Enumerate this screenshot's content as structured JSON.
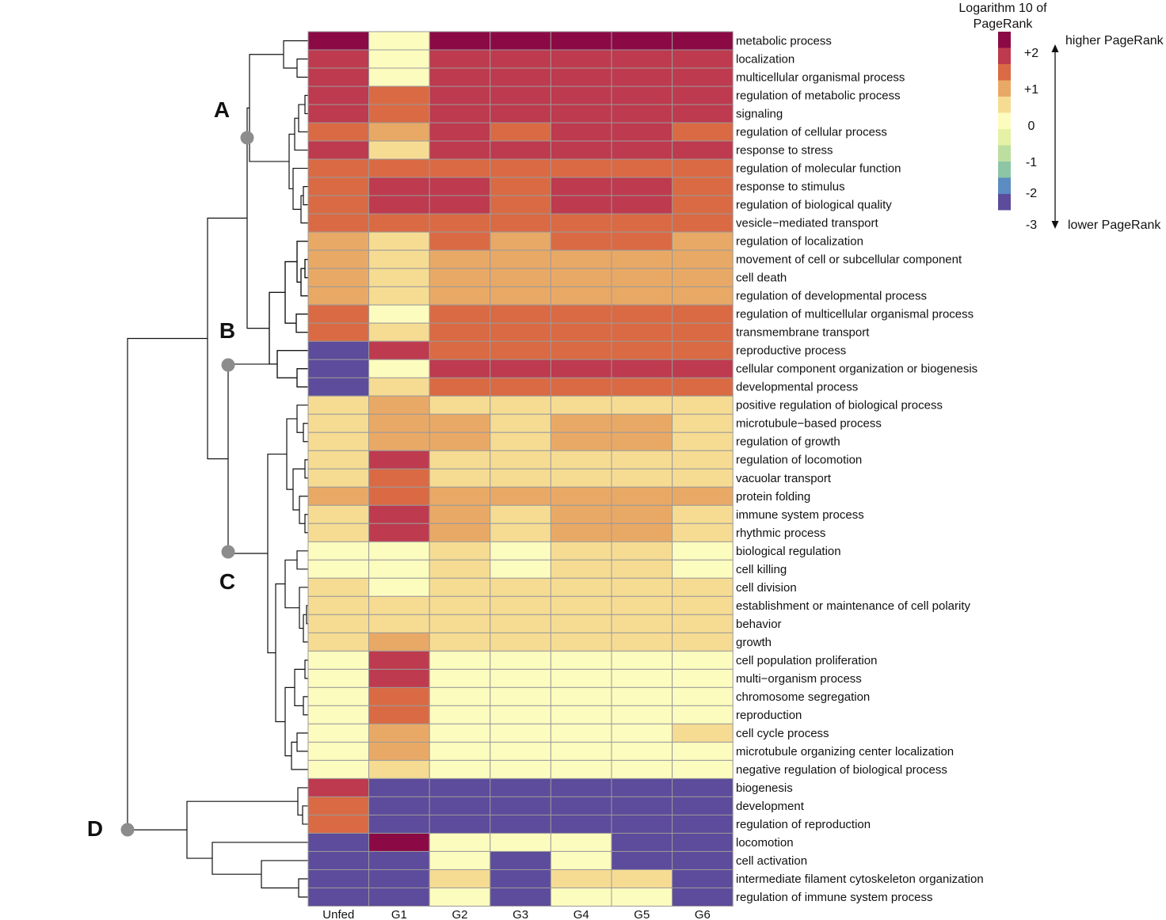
{
  "chart_data": {
    "type": "heatmap",
    "columns": [
      "Unfed",
      "G1",
      "G2",
      "G3",
      "G4",
      "G5",
      "G6"
    ],
    "rows": [
      {
        "label": "metabolic process",
        "values": [
          2.7,
          0.2,
          2.7,
          2.7,
          2.7,
          2.7,
          2.7
        ]
      },
      {
        "label": "localization",
        "values": [
          2,
          0.2,
          2,
          2,
          2,
          2,
          2
        ]
      },
      {
        "label": "multicellular organismal process",
        "values": [
          2,
          0.2,
          2,
          2,
          2,
          2,
          2
        ]
      },
      {
        "label": "regulation of metabolic process",
        "values": [
          2,
          1.5,
          2,
          2,
          2,
          2,
          2
        ]
      },
      {
        "label": "signaling",
        "values": [
          2,
          1.5,
          2,
          2,
          2,
          2,
          2
        ]
      },
      {
        "label": "regulation of cellular process",
        "values": [
          1.5,
          1,
          2,
          1.5,
          2,
          2,
          1.5
        ]
      },
      {
        "label": "response to stress",
        "values": [
          2,
          0.6,
          2,
          2,
          2,
          2,
          2
        ]
      },
      {
        "label": "regulation of molecular function",
        "values": [
          1.5,
          1.5,
          1.5,
          1.5,
          1.5,
          1.5,
          1.5
        ]
      },
      {
        "label": "response to stimulus",
        "values": [
          1.5,
          2,
          2,
          1.5,
          2,
          2,
          1.5
        ]
      },
      {
        "label": "regulation of biological quality",
        "values": [
          1.5,
          2,
          2,
          1.5,
          2,
          2,
          1.5
        ]
      },
      {
        "label": "vesicle−mediated transport",
        "values": [
          1.5,
          1.5,
          1.5,
          1.5,
          1.5,
          1.5,
          1.5
        ]
      },
      {
        "label": "regulation of localization",
        "values": [
          1,
          0.6,
          1.5,
          1,
          1.5,
          1.5,
          1
        ]
      },
      {
        "label": "movement of cell or subcellular component",
        "values": [
          1,
          0.6,
          1,
          1,
          1,
          1,
          1
        ]
      },
      {
        "label": "cell death",
        "values": [
          1,
          0.6,
          1,
          1,
          1,
          1,
          1
        ]
      },
      {
        "label": "regulation of developmental process",
        "values": [
          1,
          0.6,
          1,
          1,
          1,
          1,
          1
        ]
      },
      {
        "label": "regulation of multicellular organismal process",
        "values": [
          1.5,
          0.2,
          1.5,
          1.5,
          1.5,
          1.5,
          1.5
        ]
      },
      {
        "label": "transmembrane transport",
        "values": [
          1.5,
          0.6,
          1.5,
          1.5,
          1.5,
          1.5,
          1.5
        ]
      },
      {
        "label": "reproductive process",
        "values": [
          -3,
          2,
          1.5,
          1.5,
          1.5,
          1.5,
          1.5
        ]
      },
      {
        "label": "cellular component organization or biogenesis",
        "values": [
          -3,
          0.2,
          2,
          2,
          2,
          2,
          2
        ]
      },
      {
        "label": "developmental process",
        "values": [
          -3,
          0.6,
          1.5,
          1.5,
          1.5,
          1.5,
          1.5
        ]
      },
      {
        "label": "positive regulation of biological process",
        "values": [
          0.6,
          1,
          0.6,
          0.6,
          0.6,
          0.6,
          0.6
        ]
      },
      {
        "label": "microtubule−based process",
        "values": [
          0.6,
          1,
          1,
          0.6,
          1,
          1,
          0.6
        ]
      },
      {
        "label": "regulation of growth",
        "values": [
          0.6,
          1,
          1,
          0.6,
          1,
          1,
          0.6
        ]
      },
      {
        "label": "regulation of locomotion",
        "values": [
          0.6,
          2,
          0.6,
          0.6,
          0.6,
          0.6,
          0.6
        ]
      },
      {
        "label": "vacuolar transport",
        "values": [
          0.6,
          1.5,
          0.6,
          0.6,
          0.6,
          0.6,
          0.6
        ]
      },
      {
        "label": "protein folding",
        "values": [
          1,
          1.5,
          1,
          1,
          1,
          1,
          1
        ]
      },
      {
        "label": "immune system process",
        "values": [
          0.6,
          2,
          1,
          0.6,
          1,
          1,
          0.6
        ]
      },
      {
        "label": "rhythmic process",
        "values": [
          0.6,
          2,
          1,
          0.6,
          1,
          1,
          0.6
        ]
      },
      {
        "label": "biological regulation",
        "values": [
          0.2,
          0.2,
          0.6,
          0.2,
          0.6,
          0.6,
          0.2
        ]
      },
      {
        "label": "cell killing",
        "values": [
          0.2,
          0.2,
          0.6,
          0.2,
          0.6,
          0.6,
          0.2
        ]
      },
      {
        "label": "cell division",
        "values": [
          0.6,
          0.2,
          0.6,
          0.6,
          0.6,
          0.6,
          0.6
        ]
      },
      {
        "label": "establishment or maintenance of cell polarity",
        "values": [
          0.6,
          0.6,
          0.6,
          0.6,
          0.6,
          0.6,
          0.6
        ]
      },
      {
        "label": "behavior",
        "values": [
          0.6,
          0.6,
          0.6,
          0.6,
          0.6,
          0.6,
          0.6
        ]
      },
      {
        "label": "growth",
        "values": [
          0.6,
          1,
          0.6,
          0.6,
          0.6,
          0.6,
          0.6
        ]
      },
      {
        "label": "cell population proliferation",
        "values": [
          0.2,
          2,
          0.2,
          0.2,
          0.2,
          0.2,
          0.2
        ]
      },
      {
        "label": "multi−organism process",
        "values": [
          0.2,
          2,
          0.2,
          0.2,
          0.2,
          0.2,
          0.2
        ]
      },
      {
        "label": "chromosome segregation",
        "values": [
          0.2,
          1.5,
          0.2,
          0.2,
          0.2,
          0.2,
          0.2
        ]
      },
      {
        "label": "reproduction",
        "values": [
          0.2,
          1.5,
          0.2,
          0.2,
          0.2,
          0.2,
          0.2
        ]
      },
      {
        "label": "cell cycle process",
        "values": [
          0.2,
          1,
          0.2,
          0.2,
          0.2,
          0.2,
          0.6
        ]
      },
      {
        "label": "microtubule organizing center localization",
        "values": [
          0.2,
          1,
          0.2,
          0.2,
          0.2,
          0.2,
          0.2
        ]
      },
      {
        "label": "negative regulation of biological process",
        "values": [
          0.2,
          0.6,
          0.2,
          0.2,
          0.2,
          0.2,
          0.2
        ]
      },
      {
        "label": "biogenesis",
        "values": [
          2,
          -3,
          -3,
          -3,
          -3,
          -3,
          -3
        ]
      },
      {
        "label": "development",
        "values": [
          1.5,
          -3,
          -3,
          -3,
          -3,
          -3,
          -3
        ]
      },
      {
        "label": "regulation of reproduction",
        "values": [
          1.5,
          -3,
          -3,
          -3,
          -3,
          -3,
          -3
        ]
      },
      {
        "label": "locomotion",
        "values": [
          -3,
          2.7,
          0.2,
          0.2,
          0.2,
          -3,
          -3
        ]
      },
      {
        "label": "cell activation",
        "values": [
          -3,
          -3,
          0.2,
          -3,
          0.2,
          -3,
          -3
        ]
      },
      {
        "label": "intermediate filament cytoskeleton organization",
        "values": [
          -3,
          -3,
          0.6,
          -3,
          0.6,
          0.6,
          -3
        ]
      },
      {
        "label": "regulation of immune system process",
        "values": [
          -3,
          -3,
          0.2,
          -3,
          0.2,
          0.2,
          -3
        ]
      }
    ],
    "clusters": [
      "A",
      "B",
      "C",
      "D"
    ],
    "legend": {
      "title_line1": "Logarithm 10 of",
      "title_line2": "PageRank",
      "ticks": [
        "+2",
        "+1",
        "0",
        "-1",
        "-2",
        "-3"
      ],
      "higher_label": "higher PageRank",
      "lower_label": "lower PageRank",
      "swatches": [
        {
          "value": 2.7,
          "color": "#8B0A45"
        },
        {
          "value": 2,
          "color": "#BE3A4E"
        },
        {
          "value": 1.5,
          "color": "#DA6A44"
        },
        {
          "value": 1,
          "color": "#E9A966"
        },
        {
          "value": 0.6,
          "color": "#F6DC93"
        },
        {
          "value": 0.2,
          "color": "#FDFCBF"
        },
        {
          "value": -0.3,
          "color": "#E5F1A4"
        },
        {
          "value": -0.8,
          "color": "#BCDF9F"
        },
        {
          "value": -1.3,
          "color": "#8CC6A5"
        },
        {
          "value": -2,
          "color": "#5B8CC2"
        },
        {
          "value": -3,
          "color": "#5D4B9B"
        }
      ]
    }
  }
}
